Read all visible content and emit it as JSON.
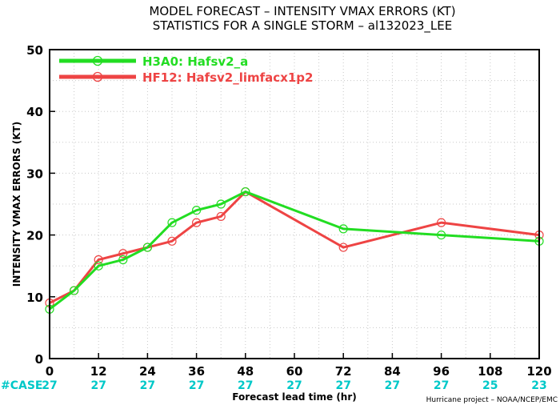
{
  "chart_data": {
    "type": "line",
    "title": "MODEL FORECAST – INTENSITY VMAX ERRORS (KT)",
    "subtitle": "STATISTICS FOR A SINGLE STORM – al132023_LEE",
    "xlabel": "Forecast lead time (hr)",
    "ylabel": "INTENSITY VMAX ERRORS (KT)",
    "xlim": [
      0,
      120
    ],
    "ylim": [
      0,
      50
    ],
    "x_ticks": [
      0,
      12,
      24,
      36,
      48,
      60,
      72,
      84,
      96,
      108,
      120
    ],
    "y_ticks": [
      0,
      10,
      20,
      30,
      40,
      50
    ],
    "grid": true,
    "legend_position": "top-left",
    "series": [
      {
        "name": "H3A0: Hafsv2_a",
        "color": "#22dd22",
        "points": [
          [
            0,
            8
          ],
          [
            6,
            11
          ],
          [
            12,
            15
          ],
          [
            18,
            16
          ],
          [
            24,
            18
          ],
          [
            30,
            22
          ],
          [
            36,
            24
          ],
          [
            42,
            25
          ],
          [
            48,
            27
          ],
          [
            72,
            21
          ],
          [
            96,
            20
          ],
          [
            120,
            19
          ]
        ]
      },
      {
        "name": "HF12: Hafsv2_limfacx1p2",
        "color": "#ee4444",
        "points": [
          [
            0,
            9
          ],
          [
            6,
            11
          ],
          [
            12,
            16
          ],
          [
            18,
            17
          ],
          [
            24,
            18
          ],
          [
            30,
            19
          ],
          [
            36,
            22
          ],
          [
            42,
            23
          ],
          [
            48,
            27
          ],
          [
            72,
            18
          ],
          [
            96,
            22
          ],
          [
            120,
            20
          ]
        ]
      }
    ],
    "case_label": "#CASE",
    "cases": [
      {
        "x": 0,
        "n": "27"
      },
      {
        "x": 12,
        "n": "27"
      },
      {
        "x": 24,
        "n": "27"
      },
      {
        "x": 36,
        "n": "27"
      },
      {
        "x": 48,
        "n": "27"
      },
      {
        "x": 60,
        "n": "27"
      },
      {
        "x": 72,
        "n": "27"
      },
      {
        "x": 84,
        "n": "27"
      },
      {
        "x": 96,
        "n": "27"
      },
      {
        "x": 108,
        "n": "25"
      },
      {
        "x": 120,
        "n": "23"
      }
    ],
    "credit": "Hurricane project – NOAA/NCEP/EMC"
  }
}
